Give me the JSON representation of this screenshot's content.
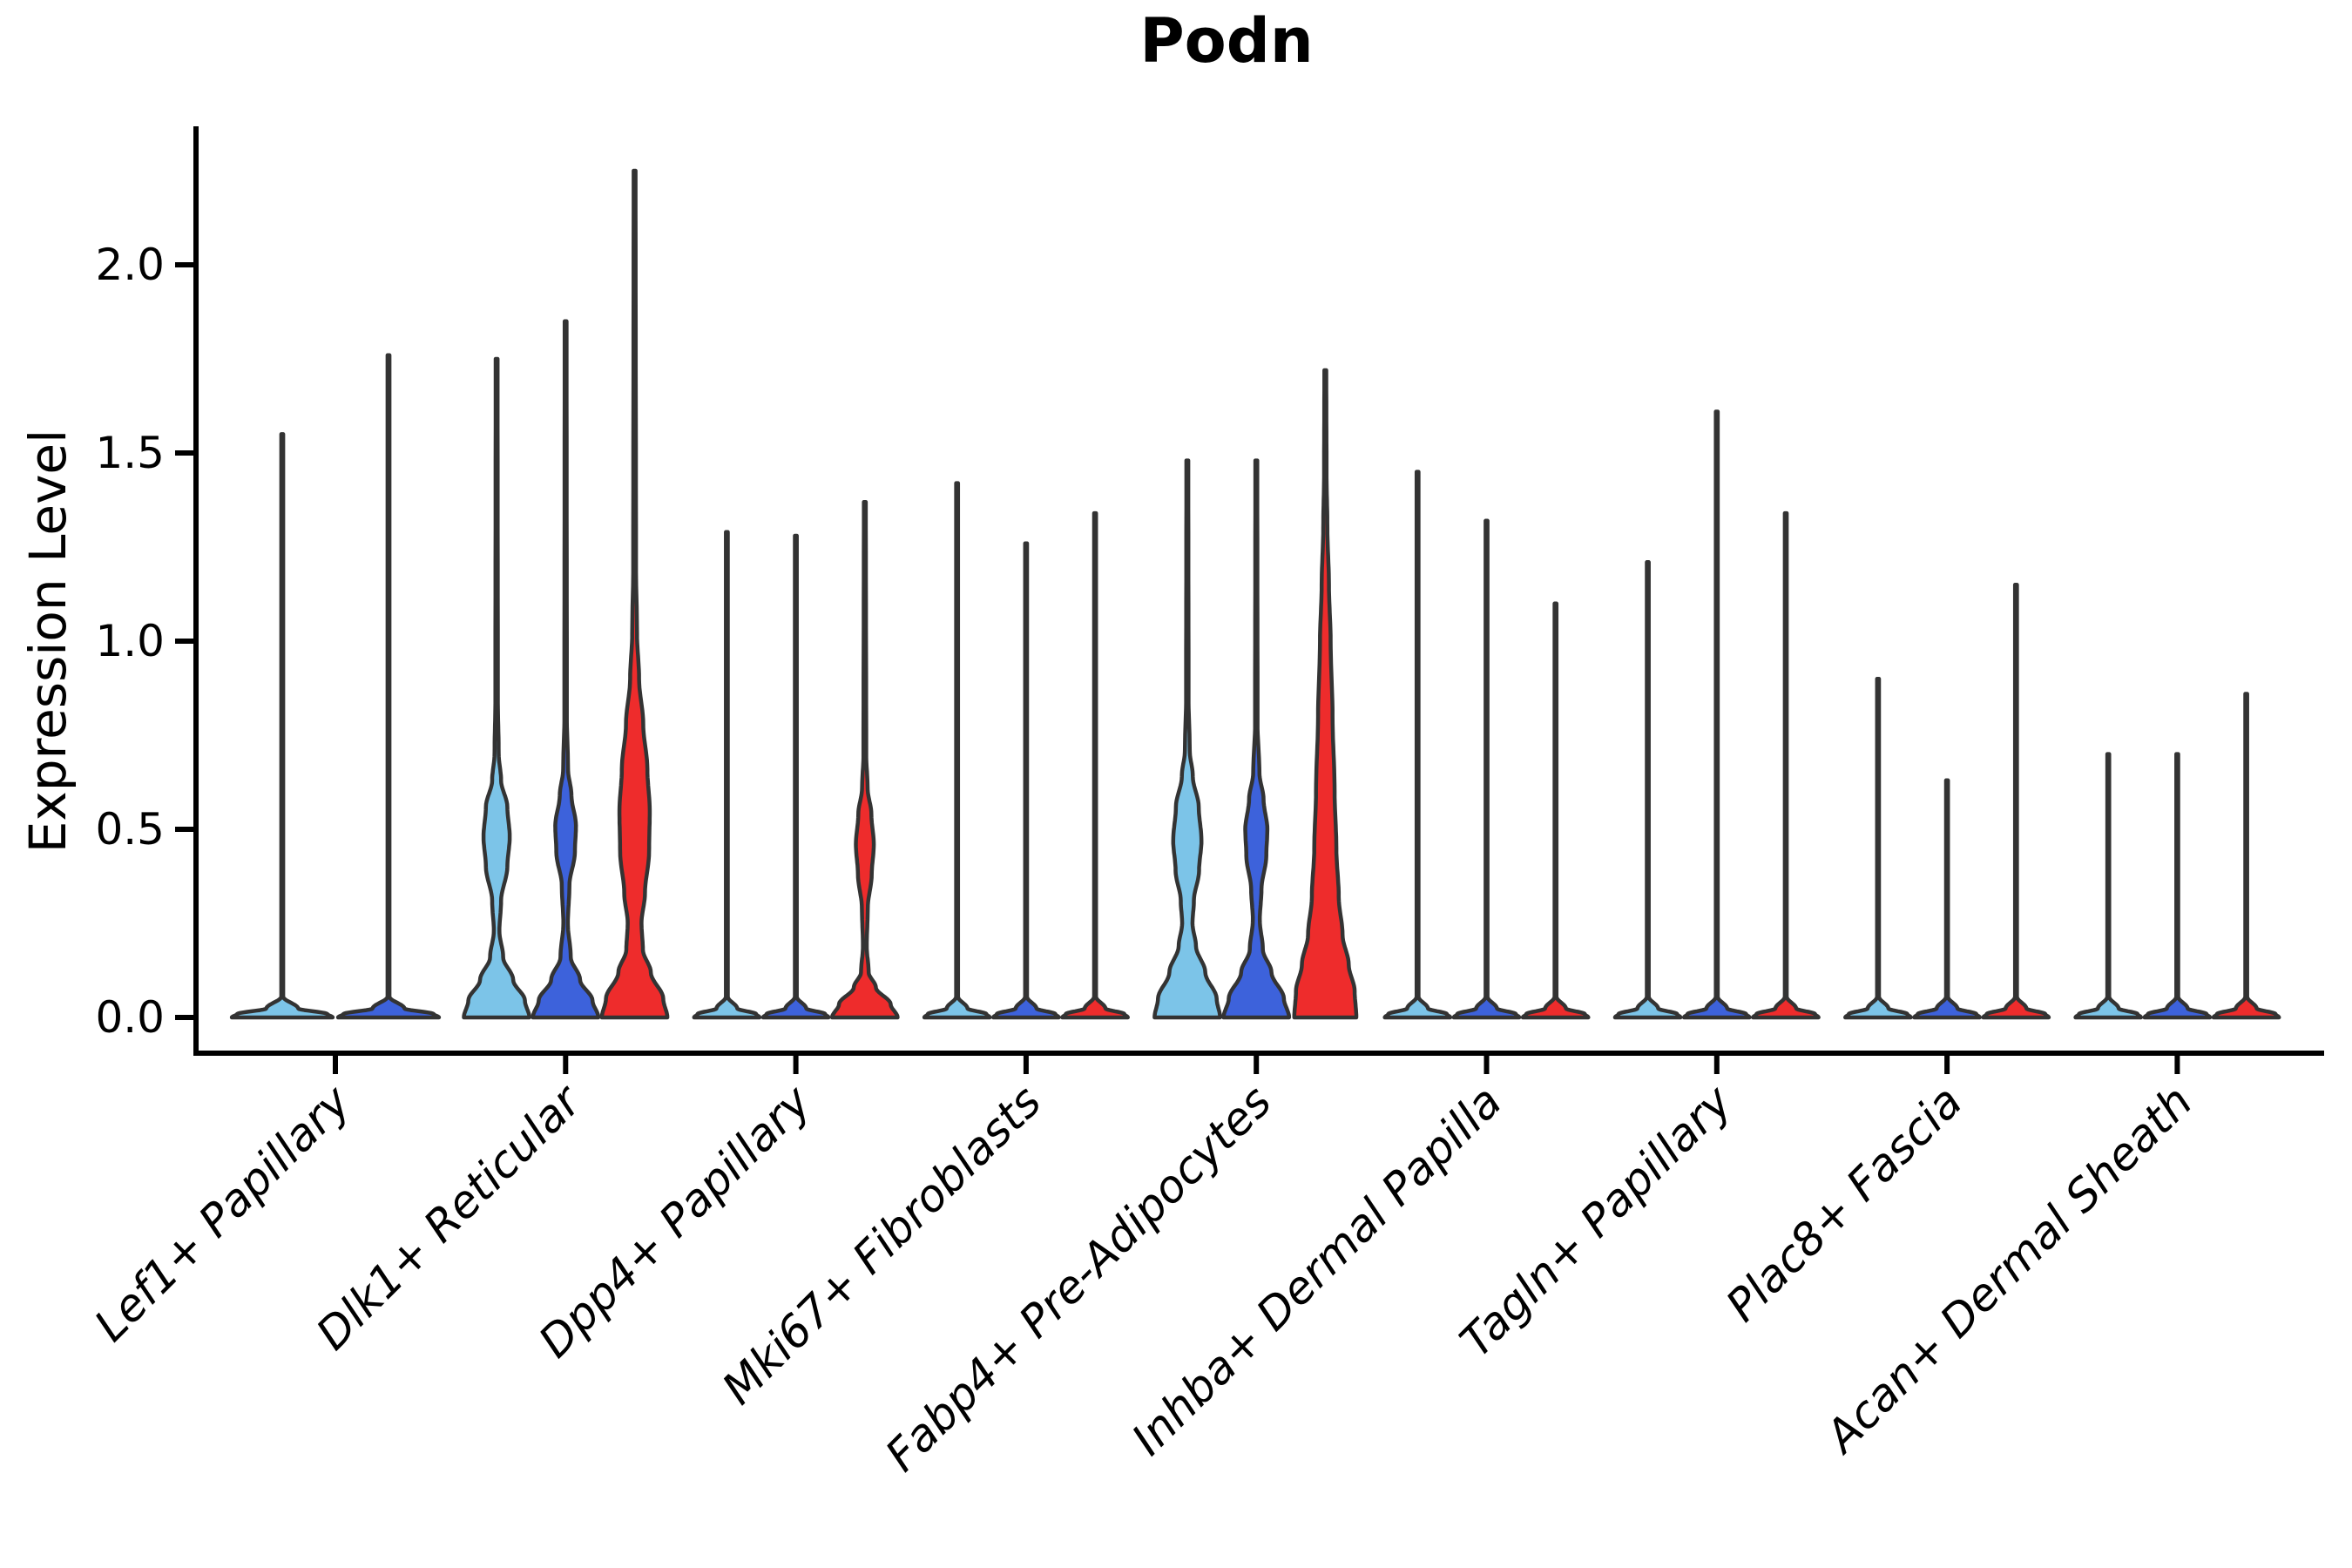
{
  "title": "Podn",
  "ylabel": "Expression Level",
  "chart_data": {
    "type": "violin",
    "title": "Podn",
    "ylabel": "Expression Level",
    "xlabel": "",
    "ylim": [
      0,
      2.35
    ],
    "grid": false,
    "legend": "none",
    "yticks": [
      {
        "v": 0.0,
        "label": "0.0"
      },
      {
        "v": 0.5,
        "label": "0.5"
      },
      {
        "v": 1.0,
        "label": "1.0"
      },
      {
        "v": 1.5,
        "label": "1.5"
      },
      {
        "v": 2.0,
        "label": "2.0"
      }
    ],
    "splits": [
      {
        "name": "split-1",
        "color": "#7CC4E8"
      },
      {
        "name": "split-2",
        "color": "#3D62DB"
      },
      {
        "name": "split-3",
        "color": "#EE2C2C"
      }
    ],
    "outline_color": "#333333",
    "axis_color": "#000000",
    "categories": [
      "Lef1+ Papillary",
      "Dlk1+ Reticular",
      "Dpp4+ Papillary",
      "Mki67+ Fibroblasts",
      "Fabp4+ Pre-Adipocytes",
      "Inhba+ Dermal Papilla",
      "Tagln+ Papillary",
      "Plac8+ Fascia",
      "Acan+ Dermal Sheath"
    ],
    "groups": [
      {
        "category": "Lef1+ Papillary",
        "violins": [
          {
            "split": 0,
            "max": 1.55,
            "profile": "spike"
          },
          {
            "split": 1,
            "max": 1.76,
            "profile": "spike"
          }
        ]
      },
      {
        "category": "Dlk1+ Reticular",
        "violins": [
          {
            "split": 0,
            "max": 1.75,
            "profile": [
              [
                0,
                0.95
              ],
              [
                0.045,
                0.82
              ],
              [
                0.1,
                0.48
              ],
              [
                0.16,
                0.19
              ],
              [
                0.23,
                0.08
              ],
              [
                0.31,
                0.13
              ],
              [
                0.4,
                0.31
              ],
              [
                0.48,
                0.38
              ],
              [
                0.56,
                0.31
              ],
              [
                0.63,
                0.13
              ],
              [
                0.7,
                0.06
              ],
              [
                0.85,
                0.035
              ],
              [
                1.75,
                0.028
              ]
            ]
          },
          {
            "split": 1,
            "max": 1.85,
            "profile": [
              [
                0,
                0.95
              ],
              [
                0.045,
                0.78
              ],
              [
                0.1,
                0.42
              ],
              [
                0.16,
                0.15
              ],
              [
                0.25,
                0.065
              ],
              [
                0.35,
                0.11
              ],
              [
                0.44,
                0.27
              ],
              [
                0.51,
                0.3
              ],
              [
                0.59,
                0.17
              ],
              [
                0.66,
                0.07
              ],
              [
                0.8,
                0.035
              ],
              [
                1.85,
                0.028
              ]
            ]
          },
          {
            "split": 2,
            "max": 2.25,
            "profile": [
              [
                0,
                0.95
              ],
              [
                0.05,
                0.83
              ],
              [
                0.12,
                0.47
              ],
              [
                0.18,
                0.24
              ],
              [
                0.25,
                0.2
              ],
              [
                0.33,
                0.3
              ],
              [
                0.44,
                0.42
              ],
              [
                0.55,
                0.44
              ],
              [
                0.66,
                0.37
              ],
              [
                0.78,
                0.25
              ],
              [
                0.9,
                0.13
              ],
              [
                1.02,
                0.07
              ],
              [
                1.2,
                0.04
              ],
              [
                2.25,
                0.028
              ]
            ]
          }
        ]
      },
      {
        "category": "Dpp4+ Papillary",
        "violins": [
          {
            "split": 0,
            "max": 1.29,
            "profile": "spike"
          },
          {
            "split": 1,
            "max": 1.28,
            "profile": "spike"
          },
          {
            "split": 2,
            "max": 1.37,
            "profile": [
              [
                0,
                0.95
              ],
              [
                0.035,
                0.75
              ],
              [
                0.08,
                0.32
              ],
              [
                0.12,
                0.11
              ],
              [
                0.19,
                0.055
              ],
              [
                0.29,
                0.085
              ],
              [
                0.38,
                0.2
              ],
              [
                0.46,
                0.26
              ],
              [
                0.54,
                0.19
              ],
              [
                0.61,
                0.08
              ],
              [
                0.7,
                0.04
              ],
              [
                1.37,
                0.028
              ]
            ]
          }
        ]
      },
      {
        "category": "Mki67+ Fibroblasts",
        "violins": [
          {
            "split": 0,
            "max": 1.42,
            "profile": "spike"
          },
          {
            "split": 1,
            "max": 1.26,
            "profile": "spike"
          },
          {
            "split": 2,
            "max": 1.34,
            "profile": "spike"
          }
        ]
      },
      {
        "category": "Fabp4+ Pre-Adipocytes",
        "violins": [
          {
            "split": 0,
            "max": 1.48,
            "profile": [
              [
                0,
                0.95
              ],
              [
                0.05,
                0.85
              ],
              [
                0.12,
                0.52
              ],
              [
                0.19,
                0.25
              ],
              [
                0.25,
                0.15
              ],
              [
                0.31,
                0.19
              ],
              [
                0.39,
                0.34
              ],
              [
                0.47,
                0.41
              ],
              [
                0.56,
                0.33
              ],
              [
                0.64,
                0.16
              ],
              [
                0.71,
                0.07
              ],
              [
                0.85,
                0.035
              ],
              [
                1.48,
                0.028
              ]
            ]
          },
          {
            "split": 1,
            "max": 1.48,
            "profile": [
              [
                0,
                0.95
              ],
              [
                0.05,
                0.8
              ],
              [
                0.12,
                0.44
              ],
              [
                0.18,
                0.19
              ],
              [
                0.26,
                0.1
              ],
              [
                0.34,
                0.15
              ],
              [
                0.43,
                0.29
              ],
              [
                0.5,
                0.32
              ],
              [
                0.58,
                0.21
              ],
              [
                0.65,
                0.09
              ],
              [
                0.78,
                0.035
              ],
              [
                1.48,
                0.028
              ]
            ]
          },
          {
            "split": 2,
            "max": 1.72,
            "profile": [
              [
                0,
                0.9
              ],
              [
                0.07,
                0.85
              ],
              [
                0.14,
                0.68
              ],
              [
                0.22,
                0.5
              ],
              [
                0.32,
                0.39
              ],
              [
                0.45,
                0.32
              ],
              [
                0.6,
                0.27
              ],
              [
                0.8,
                0.21
              ],
              [
                1.0,
                0.155
              ],
              [
                1.15,
                0.105
              ],
              [
                1.3,
                0.06
              ],
              [
                1.45,
                0.035
              ],
              [
                1.72,
                0.028
              ]
            ]
          }
        ]
      },
      {
        "category": "Inhba+ Dermal Papilla",
        "violins": [
          {
            "split": 0,
            "max": 1.45,
            "profile": "spike"
          },
          {
            "split": 1,
            "max": 1.32,
            "profile": "spike"
          },
          {
            "split": 2,
            "max": 1.1,
            "profile": "spike"
          }
        ]
      },
      {
        "category": "Tagln+ Papillary",
        "violins": [
          {
            "split": 0,
            "max": 1.21,
            "profile": "spike"
          },
          {
            "split": 1,
            "max": 1.61,
            "profile": "spike"
          },
          {
            "split": 2,
            "max": 1.34,
            "profile": "spike"
          }
        ]
      },
      {
        "category": "Plac8+ Fascia",
        "violins": [
          {
            "split": 0,
            "max": 0.9,
            "profile": "spike"
          },
          {
            "split": 1,
            "max": 0.63,
            "profile": "spike"
          },
          {
            "split": 2,
            "max": 1.15,
            "profile": "spike"
          }
        ]
      },
      {
        "category": "Acan+ Dermal Sheath",
        "violins": [
          {
            "split": 0,
            "max": 0.7,
            "profile": "spike"
          },
          {
            "split": 1,
            "max": 0.7,
            "profile": "spike"
          },
          {
            "split": 2,
            "max": 0.86,
            "profile": "spike"
          }
        ]
      }
    ]
  }
}
